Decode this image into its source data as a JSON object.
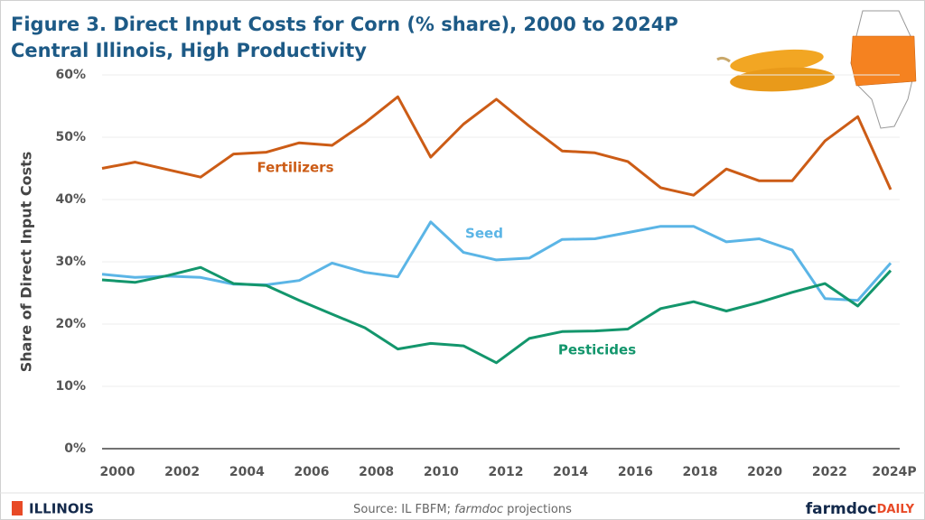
{
  "chart_data": {
    "type": "line",
    "title": "Figure 3. Direct Input Costs for Corn (% share), 2000 to 2024P",
    "subtitle": "Central Illinois, High Productivity",
    "y_label": "Share of Direct Input Costs",
    "categories": [
      "2000",
      null,
      "2002",
      null,
      "2004",
      null,
      "2006",
      null,
      "2008",
      null,
      "2010",
      null,
      "2012",
      null,
      "2014",
      null,
      "2016",
      null,
      "2018",
      null,
      "2020",
      null,
      "2022",
      null,
      "2024P"
    ],
    "series": [
      {
        "name": "Fertilizers",
        "color": "#cc5c16",
        "values": [
          45.0,
          46.0,
          44.8,
          43.6,
          47.3,
          47.6,
          49.1,
          48.7,
          52.3,
          56.5,
          46.8,
          52.1,
          56.1,
          51.8,
          47.8,
          47.5,
          46.1,
          41.9,
          40.7,
          44.9,
          43.0,
          43.0,
          49.4,
          53.3,
          41.6
        ]
      },
      {
        "name": "Seed",
        "color": "#5bb5e6",
        "values": [
          28.0,
          27.5,
          27.7,
          27.5,
          26.4,
          26.3,
          27.0,
          29.8,
          28.3,
          27.6,
          36.4,
          31.5,
          30.3,
          30.6,
          33.6,
          33.7,
          34.7,
          35.7,
          35.7,
          33.2,
          33.7,
          31.9,
          24.1,
          23.8,
          29.8
        ]
      },
      {
        "name": "Pesticides",
        "color": "#13966c",
        "values": [
          27.1,
          26.7,
          27.8,
          29.1,
          26.5,
          26.2,
          23.8,
          21.6,
          19.4,
          16.0,
          16.9,
          16.5,
          13.8,
          17.7,
          18.8,
          18.9,
          19.2,
          22.5,
          23.6,
          22.1,
          23.5,
          25.1,
          26.5,
          22.9,
          28.6
        ]
      }
    ],
    "ylim": [
      0,
      60
    ],
    "yticks": [
      {
        "value": 0,
        "label": "0%"
      },
      {
        "value": 10,
        "label": "10%"
      },
      {
        "value": 20,
        "label": "20%"
      },
      {
        "value": 30,
        "label": "30%"
      },
      {
        "value": 40,
        "label": "40%"
      },
      {
        "value": 50,
        "label": "50%"
      },
      {
        "value": 60,
        "label": "60%"
      }
    ],
    "grid": true
  },
  "footer": {
    "source_prefix": "Source: IL FBFM; ",
    "source_emph": "farmdoc",
    "source_suffix": " projections",
    "logo_left": "ILLINOIS",
    "logo_right_a": "farmdoc",
    "logo_right_b": "DAILY"
  }
}
